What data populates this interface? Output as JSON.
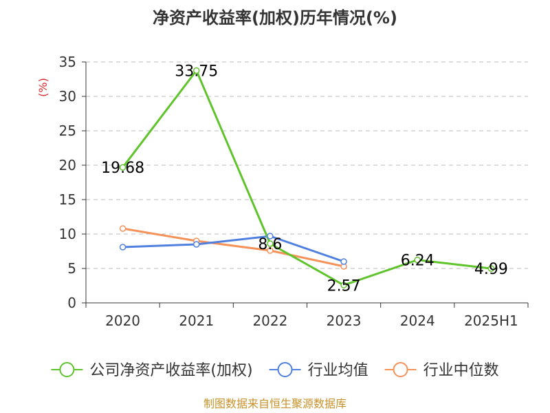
{
  "colors": {
    "company": "#5fc42b",
    "industry_avg": "#4f80e0",
    "industry_median": "#f4925a",
    "ylabel": "#d62728",
    "source": "#c8922a",
    "grid": "#bbbbbb",
    "axis": "#333333"
  },
  "legend_icon": "circle-line-marker",
  "chart_data": {
    "type": "line",
    "title": "净资产收益率(加权)历年情况(%)",
    "xlabel": "",
    "ylabel": "(%)",
    "categories": [
      "2020",
      "2021",
      "2022",
      "2023",
      "2024",
      "2025H1"
    ],
    "ylim": [
      0,
      35
    ],
    "yticks": [
      0,
      5,
      10,
      15,
      20,
      25,
      30,
      35
    ],
    "grid": true,
    "legend_position": "bottom",
    "series": [
      {
        "key": "company",
        "name": "公司净资产收益率(加权)",
        "values": [
          19.68,
          33.75,
          8.6,
          2.57,
          6.24,
          4.99
        ],
        "labels": [
          "19.68",
          "33.75",
          "8.6",
          "2.57",
          "6.24",
          "4.99"
        ]
      },
      {
        "key": "industry_avg",
        "name": "行业均值",
        "values": [
          8.1,
          8.5,
          9.7,
          6.0,
          null,
          null
        ]
      },
      {
        "key": "industry_median",
        "name": "行业中位数",
        "values": [
          10.8,
          9.0,
          7.6,
          5.3,
          null,
          null
        ]
      }
    ]
  },
  "source_note": "制图数据来自恒生聚源数据库"
}
